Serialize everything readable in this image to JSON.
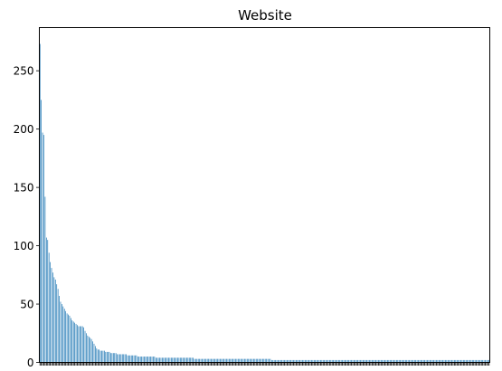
{
  "chart_data": {
    "type": "bar",
    "title": "Website",
    "xlabel": "",
    "ylabel": "",
    "ylim": [
      0,
      287
    ],
    "yticks": [
      0,
      50,
      100,
      150,
      200,
      250
    ],
    "grid": false,
    "legend": "none",
    "color": "#1f77b4",
    "values": [
      273,
      225,
      197,
      195,
      142,
      107,
      105,
      94,
      86,
      81,
      77,
      73,
      71,
      67,
      63,
      57,
      52,
      50,
      48,
      46,
      44,
      42,
      41,
      40,
      38,
      36,
      35,
      34,
      33,
      32,
      31,
      31,
      31,
      31,
      30,
      27,
      25,
      23,
      22,
      21,
      20,
      18,
      16,
      14,
      12,
      11,
      11,
      10,
      10,
      10,
      10,
      9,
      9,
      9,
      9,
      8,
      8,
      8,
      8,
      8,
      7,
      7,
      7,
      7,
      7,
      7,
      7,
      7,
      6,
      6,
      6,
      6,
      6,
      6,
      6,
      6,
      5,
      5,
      5,
      5,
      5,
      5,
      5,
      5,
      5,
      5,
      5,
      5,
      5,
      5,
      4,
      4,
      4,
      4,
      4,
      4,
      4,
      4,
      4,
      4,
      4,
      4,
      4,
      4,
      4,
      4,
      4,
      4,
      4,
      4,
      4,
      4,
      4,
      4,
      4,
      4,
      4,
      4,
      4,
      4,
      3,
      3,
      3,
      3,
      3,
      3,
      3,
      3,
      3,
      3,
      3,
      3,
      3,
      3,
      3,
      3,
      3,
      3,
      3,
      3,
      3,
      3,
      3,
      3,
      3,
      3,
      3,
      3,
      3,
      3,
      3,
      3,
      3,
      3,
      3,
      3,
      3,
      3,
      3,
      3,
      3,
      3,
      3,
      3,
      3,
      3,
      3,
      3,
      3,
      3,
      3,
      3,
      3,
      3,
      3,
      3,
      3,
      3,
      3,
      3,
      2,
      2,
      2,
      2,
      2,
      2,
      2,
      2,
      2,
      2,
      2,
      2,
      2,
      2,
      2,
      2,
      2,
      2,
      2,
      2,
      2,
      2,
      2,
      2,
      2,
      2,
      2,
      2,
      2,
      2,
      2,
      2,
      2,
      2,
      2,
      2,
      2,
      2,
      2,
      2,
      2,
      2,
      2,
      2,
      2,
      2,
      2,
      2,
      2,
      2,
      2,
      2,
      2,
      2,
      2,
      2,
      2,
      2,
      2,
      2,
      2,
      2,
      2,
      2,
      2,
      2,
      2,
      2,
      2,
      2,
      2,
      2,
      2,
      2,
      2,
      2,
      2,
      2,
      2,
      2,
      2,
      2,
      2,
      2,
      2,
      2,
      2,
      2,
      2,
      2,
      2,
      2,
      2,
      2,
      2,
      2,
      2,
      2,
      2,
      2,
      2,
      2,
      2,
      2,
      2,
      2,
      2,
      2,
      2,
      2,
      2,
      2,
      2,
      2,
      2,
      2,
      2,
      2,
      2,
      2,
      2,
      2,
      2,
      2,
      2,
      2,
      2,
      2,
      2,
      2,
      2,
      2,
      2,
      2,
      2,
      2,
      2,
      2,
      2,
      2,
      2,
      2,
      2,
      2,
      2,
      2,
      2,
      2,
      2,
      2,
      2,
      2,
      2,
      2,
      2,
      2,
      2,
      2,
      2,
      2,
      2,
      2,
      2,
      2,
      2,
      2,
      2,
      2,
      2,
      2
    ]
  }
}
